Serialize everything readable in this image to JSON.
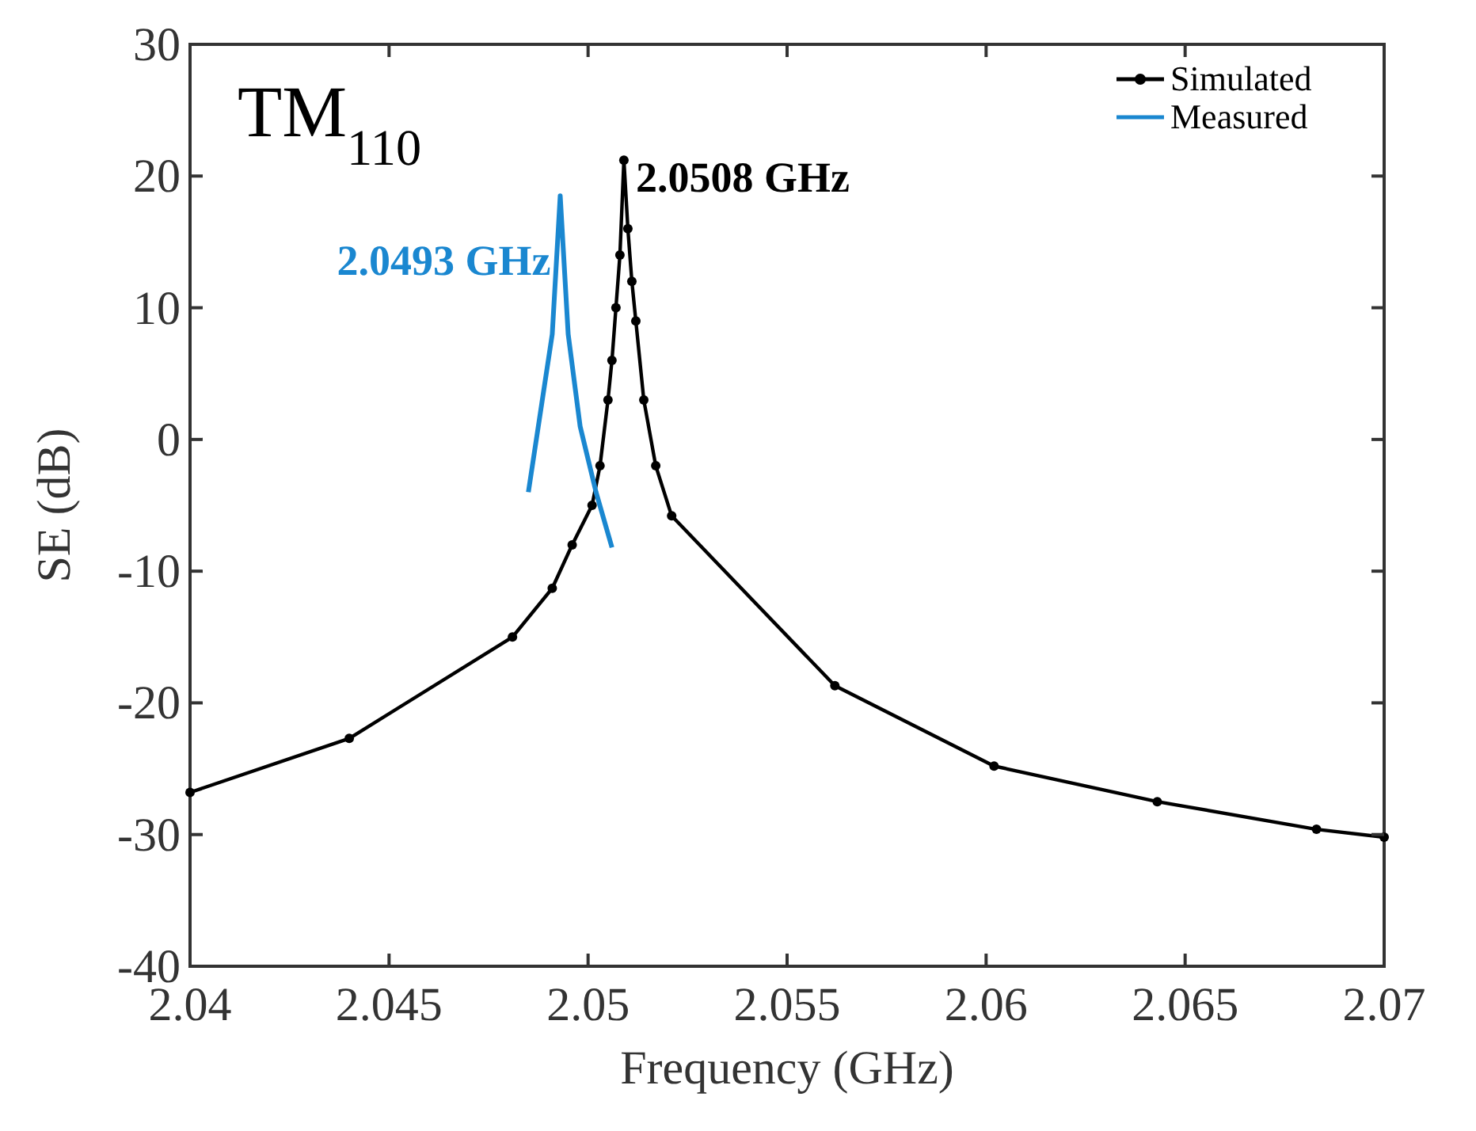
{
  "chart_data": {
    "type": "line",
    "xlabel": "Frequency (GHz)",
    "ylabel": "SE (dB)",
    "xlim": [
      2.04,
      2.07
    ],
    "xticks": [
      2.04,
      2.045,
      2.05,
      2.055,
      2.06,
      2.065,
      2.07
    ],
    "ylim": [
      -40,
      30
    ],
    "yticks": [
      -40,
      -30,
      -20,
      -10,
      0,
      10,
      20,
      30
    ],
    "grid": false,
    "legend": "top right",
    "series": [
      {
        "name": "Simulated",
        "color": "#000000",
        "marker": "circle",
        "x": [
          2.04,
          2.044,
          2.0481,
          2.0491,
          2.0496,
          2.0501,
          2.0503,
          2.0505,
          2.0506,
          2.0507,
          2.0508,
          2.0509,
          2.051,
          2.0511,
          2.0512,
          2.0514,
          2.0517,
          2.0521,
          2.0562,
          2.0602,
          2.0643,
          2.0683,
          2.07
        ],
        "values": [
          -26.8,
          -22.7,
          -15,
          -11.3,
          -8,
          -5,
          -2,
          3,
          6,
          10,
          14,
          21.2,
          16,
          12,
          9,
          3,
          -2,
          -5.8,
          -18.7,
          -24.8,
          -27.5,
          -29.6,
          -30.2
        ]
      },
      {
        "name": "Measured",
        "color": "#1a87d0",
        "marker": "none",
        "x": [
          2.0485,
          2.0488,
          2.0491,
          2.0493,
          2.0495,
          2.0498,
          2.0502,
          2.0506
        ],
        "values": [
          -4,
          2,
          8,
          18.5,
          8,
          1,
          -4,
          -8.2
        ]
      }
    ],
    "annotations": [
      "TM$_{110}$",
      {
        "text": "2.0493 GHz",
        "x": 2.0493,
        "y": 18.5
      },
      {
        "text": "2.0508 GHz",
        "x": 2.0508,
        "y": 21.2
      }
    ]
  }
}
